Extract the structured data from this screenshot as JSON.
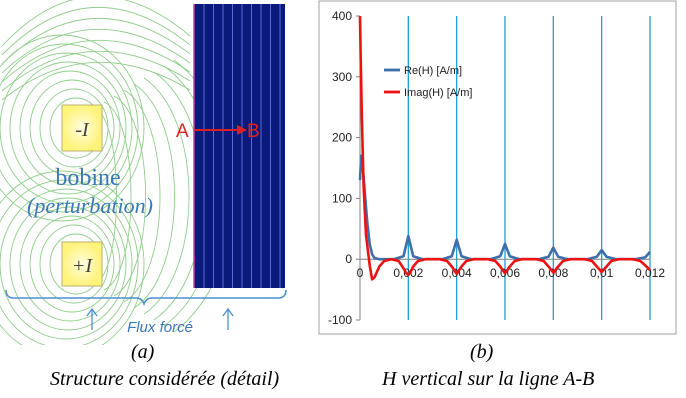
{
  "figure_a": {
    "coil_label": "bobine",
    "coil_sub_label": "(perturbation)",
    "top_conductor": "-I",
    "bottom_conductor": "+I",
    "point_a": "A",
    "point_b": "B",
    "forced_flux_label": "Flux forcé",
    "panel_tag": "(a)",
    "caption": "Structure considérée (détail)"
  },
  "figure_b": {
    "panel_tag": "(b)",
    "caption": "H vertical sur la ligne A-B"
  },
  "colors": {
    "field_lines": "#8fcf8a",
    "plate": "#0a1a7a",
    "plate_stripes": "#5a6ad8",
    "conductor_fill": "#fff9a8",
    "annotation_red": "#e02020",
    "label_blue": "#3a78b8",
    "series_re": "#3f6fa8",
    "series_imag": "#ee1111",
    "grid_vertical": "#1aa0d8"
  },
  "chart_data": {
    "type": "line",
    "xlim": [
      0,
      0.012
    ],
    "ylim": [
      -100,
      400
    ],
    "x_ticks": [
      "0",
      "0,002",
      "0,004",
      "0,006",
      "0,008",
      "0,01",
      "0,012"
    ],
    "y_ticks": [
      "400",
      "300",
      "200",
      "100",
      "0",
      "-100"
    ],
    "legend_position": "top-left",
    "series": [
      {
        "name": "Re(H) [A/m]",
        "x": [
          0,
          5e-05,
          0.0001,
          0.0002,
          0.0003,
          0.0004,
          0.0005,
          0.0006,
          0.0008,
          0.001,
          0.0014,
          0.0018,
          0.002,
          0.0022,
          0.0026,
          0.0034,
          0.0038,
          0.004,
          0.0042,
          0.0046,
          0.0054,
          0.0058,
          0.006,
          0.0062,
          0.0066,
          0.0074,
          0.0078,
          0.008,
          0.0082,
          0.0086,
          0.0094,
          0.0098,
          0.01,
          0.0102,
          0.0106,
          0.0114,
          0.0118,
          0.012
        ],
        "y": [
          130,
          170,
          160,
          110,
          60,
          25,
          8,
          2,
          0,
          0,
          0,
          5,
          38,
          5,
          0,
          0,
          5,
          32,
          5,
          0,
          0,
          5,
          25,
          5,
          0,
          0,
          4,
          19,
          4,
          0,
          0,
          4,
          15,
          4,
          0,
          0,
          3,
          12
        ]
      },
      {
        "name": "Imag(H) [A/m]",
        "x": [
          0,
          3e-05,
          8e-05,
          0.00015,
          0.00025,
          0.0004,
          0.0005,
          0.0006,
          0.0008,
          0.001,
          0.0013,
          0.0016,
          0.0018,
          0.0019,
          0.002,
          0.0021,
          0.0022,
          0.0024,
          0.0027,
          0.0033,
          0.0036,
          0.0038,
          0.004,
          0.0042,
          0.0044,
          0.0047,
          0.0053,
          0.0056,
          0.0058,
          0.006,
          0.0062,
          0.0064,
          0.0067,
          0.0073,
          0.0076,
          0.0078,
          0.008,
          0.0082,
          0.0084,
          0.0087,
          0.0093,
          0.0096,
          0.0098,
          0.01,
          0.0102,
          0.0104,
          0.0107,
          0.0113,
          0.0116,
          0.0118,
          0.012
        ],
        "y": [
          400,
          330,
          230,
          120,
          40,
          -10,
          -33,
          -30,
          -12,
          -3,
          0,
          -3,
          -15,
          -22,
          -26,
          -20,
          -12,
          -3,
          0,
          0,
          -3,
          -12,
          -24,
          -12,
          -3,
          0,
          0,
          -3,
          -12,
          -23,
          -12,
          -3,
          0,
          0,
          -3,
          -12,
          -22,
          -12,
          -3,
          0,
          0,
          -3,
          -12,
          -21,
          -12,
          -3,
          0,
          0,
          -3,
          -10,
          -18
        ]
      }
    ]
  }
}
